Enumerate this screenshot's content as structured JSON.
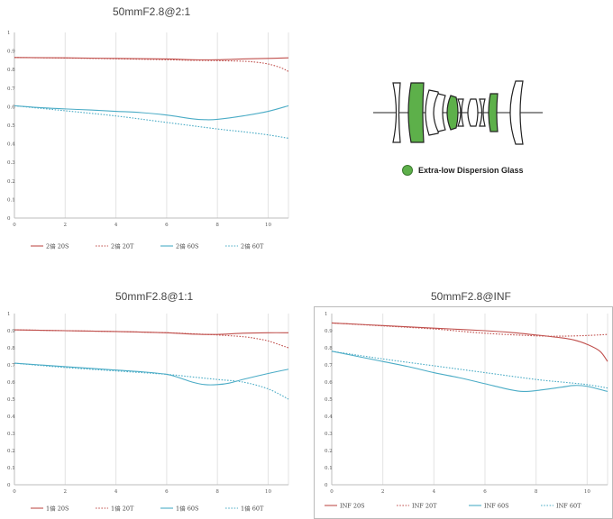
{
  "chart_data": [
    {
      "type": "line",
      "title": "50mmF2.8@2:1",
      "xlim": [
        0,
        10.8
      ],
      "ylim": [
        0,
        1
      ],
      "xticks": [
        "0",
        "2",
        "4",
        "6",
        "8",
        "10"
      ],
      "yticks": [
        "0",
        "0.1",
        "0.2",
        "0.3",
        "0.4",
        "0.5",
        "0.6",
        "0.7",
        "0.8",
        "0.9",
        "1"
      ],
      "grid": "vertical",
      "legend_position": "bottom",
      "series": [
        {
          "name": "2倍 20S",
          "color": "#c0504d",
          "dash": "solid",
          "x": [
            0,
            2,
            4,
            6,
            7,
            8,
            9,
            10,
            10.8
          ],
          "y": [
            0.865,
            0.863,
            0.86,
            0.857,
            0.853,
            0.853,
            0.857,
            0.86,
            0.863
          ]
        },
        {
          "name": "2倍 20T",
          "color": "#c0504d",
          "dash": "dotted",
          "x": [
            0,
            2,
            4,
            6,
            7,
            8,
            9,
            9.5,
            10,
            10.5,
            10.8
          ],
          "y": [
            0.865,
            0.862,
            0.858,
            0.853,
            0.85,
            0.848,
            0.845,
            0.84,
            0.83,
            0.81,
            0.79
          ]
        },
        {
          "name": "2倍 60S",
          "color": "#4bacc6",
          "dash": "solid",
          "x": [
            0,
            1,
            2,
            3,
            4,
            5,
            6,
            7,
            7.5,
            8,
            9,
            10,
            10.8
          ],
          "y": [
            0.605,
            0.595,
            0.588,
            0.582,
            0.575,
            0.568,
            0.555,
            0.535,
            0.53,
            0.532,
            0.55,
            0.575,
            0.605
          ]
        },
        {
          "name": "2倍 60T",
          "color": "#4bacc6",
          "dash": "dotted",
          "x": [
            0,
            2,
            4,
            6,
            8,
            9,
            10,
            10.8
          ],
          "y": [
            0.605,
            0.578,
            0.55,
            0.515,
            0.48,
            0.465,
            0.448,
            0.43
          ]
        }
      ]
    },
    {
      "type": "line",
      "title": "50mmF2.8@1:1",
      "xlim": [
        0,
        10.8
      ],
      "ylim": [
        0,
        1
      ],
      "xticks": [
        "0",
        "2",
        "4",
        "6",
        "8",
        "10"
      ],
      "yticks": [
        "0",
        "0.1",
        "0.2",
        "0.3",
        "0.4",
        "0.5",
        "0.6",
        "0.7",
        "0.8",
        "0.9",
        "1"
      ],
      "grid": "vertical",
      "legend_position": "bottom",
      "series": [
        {
          "name": "1倍 20S",
          "color": "#c0504d",
          "dash": "solid",
          "x": [
            0,
            2,
            4,
            6,
            7,
            8,
            9,
            10,
            10.8
          ],
          "y": [
            0.905,
            0.9,
            0.895,
            0.888,
            0.88,
            0.878,
            0.885,
            0.888,
            0.888
          ]
        },
        {
          "name": "1倍 20T",
          "color": "#c0504d",
          "dash": "dotted",
          "x": [
            0,
            2,
            4,
            6,
            7,
            8,
            9,
            9.5,
            10,
            10.5,
            10.8
          ],
          "y": [
            0.905,
            0.9,
            0.895,
            0.888,
            0.882,
            0.875,
            0.865,
            0.855,
            0.84,
            0.815,
            0.8
          ]
        },
        {
          "name": "1倍 60S",
          "color": "#4bacc6",
          "dash": "solid",
          "x": [
            0,
            1,
            2,
            3,
            4,
            5,
            6,
            6.5,
            7,
            7.5,
            8,
            8.5,
            9,
            10,
            10.8
          ],
          "y": [
            0.71,
            0.7,
            0.69,
            0.68,
            0.67,
            0.66,
            0.645,
            0.625,
            0.6,
            0.585,
            0.585,
            0.595,
            0.615,
            0.65,
            0.675
          ]
        },
        {
          "name": "1倍 60T",
          "color": "#4bacc6",
          "dash": "dotted",
          "x": [
            0,
            2,
            4,
            6,
            7,
            8,
            9,
            10,
            10.8
          ],
          "y": [
            0.71,
            0.685,
            0.665,
            0.645,
            0.63,
            0.615,
            0.6,
            0.56,
            0.5
          ]
        }
      ]
    },
    {
      "type": "line",
      "title": "50mmF2.8@INF",
      "xlim": [
        0,
        10.8
      ],
      "ylim": [
        0,
        1
      ],
      "xticks": [
        "0",
        "2",
        "4",
        "6",
        "8",
        "10"
      ],
      "yticks": [
        "0",
        "0.1",
        "0.2",
        "0.3",
        "0.4",
        "0.5",
        "0.6",
        "0.7",
        "0.8",
        "0.9",
        "1"
      ],
      "grid": "vertical",
      "legend_position": "bottom",
      "series": [
        {
          "name": "INF 20S",
          "color": "#c0504d",
          "dash": "solid",
          "x": [
            0,
            2,
            4,
            6,
            7,
            8,
            9,
            9.5,
            10,
            10.5,
            10.8
          ],
          "y": [
            0.945,
            0.93,
            0.915,
            0.9,
            0.89,
            0.875,
            0.858,
            0.845,
            0.82,
            0.78,
            0.72
          ]
        },
        {
          "name": "INF 20T",
          "color": "#c0504d",
          "dash": "dotted",
          "x": [
            0,
            2,
            4,
            6,
            8,
            9,
            10,
            10.8
          ],
          "y": [
            0.945,
            0.928,
            0.91,
            0.885,
            0.87,
            0.868,
            0.872,
            0.878
          ]
        },
        {
          "name": "INF 60S",
          "color": "#4bacc6",
          "dash": "solid",
          "x": [
            0,
            1,
            2,
            3,
            4,
            5,
            6,
            7,
            7.5,
            8,
            9,
            9.5,
            10,
            10.8
          ],
          "y": [
            0.78,
            0.75,
            0.72,
            0.69,
            0.655,
            0.625,
            0.59,
            0.555,
            0.545,
            0.55,
            0.57,
            0.58,
            0.575,
            0.545
          ]
        },
        {
          "name": "INF 60T",
          "color": "#4bacc6",
          "dash": "dotted",
          "x": [
            0,
            2,
            4,
            6,
            8,
            9,
            10,
            10.8
          ],
          "y": [
            0.78,
            0.735,
            0.695,
            0.655,
            0.615,
            0.6,
            0.585,
            0.565
          ]
        }
      ]
    }
  ],
  "lens_diagram": {
    "legend_label": "Extra-low Dispersion Glass",
    "ed_color": "#5db04a"
  }
}
